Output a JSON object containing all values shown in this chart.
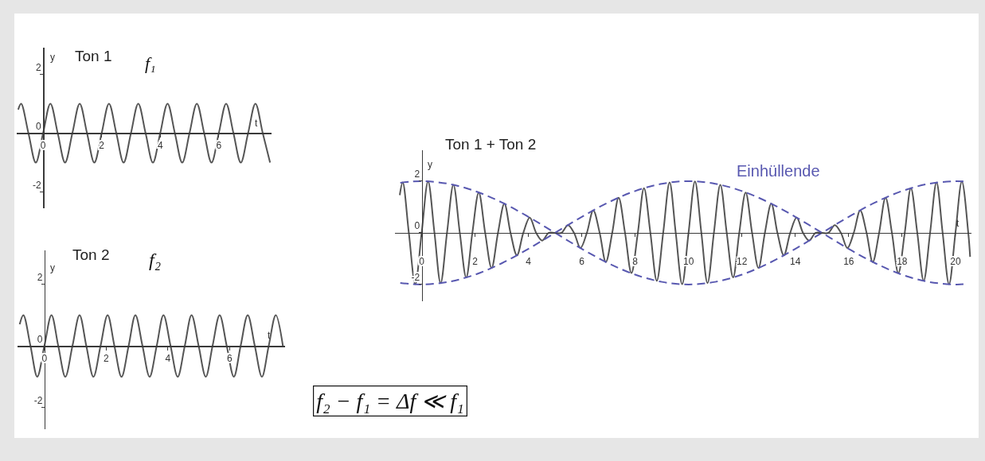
{
  "chart_data": [
    {
      "type": "line",
      "title": "Ton 1",
      "annotations": [
        "f₁"
      ],
      "xlabel": "t",
      "ylabel": "y",
      "x": [
        -0.85,
        -0.75,
        -0.5,
        -0.25,
        0,
        0.25,
        0.5,
        0.75,
        1,
        1.25,
        1.5,
        1.75,
        2,
        2.25,
        2.5,
        2.75,
        3,
        3.25,
        3.5,
        3.75,
        4,
        4.25,
        4.5,
        4.75,
        5,
        5.25,
        5.5,
        5.75,
        6,
        6.25,
        6.5,
        6.75,
        7,
        7.25,
        7.5,
        7.75
      ],
      "series": [
        {
          "color": "#555555",
          "values": [
            0.8,
            1,
            0,
            -1,
            0,
            1,
            0,
            -1,
            0,
            1,
            0,
            -1,
            0,
            1,
            0,
            -1,
            0,
            1,
            0,
            -1,
            0,
            1,
            0,
            -1,
            0,
            1,
            0,
            -1,
            0,
            1,
            0,
            -1,
            0,
            1,
            0,
            -1
          ]
        }
      ],
      "xlim": [
        -0.9,
        7.8
      ],
      "ylim": [
        -2.55,
        2.9
      ],
      "xticks": [
        0,
        2,
        4,
        6
      ],
      "yticks": [
        -2,
        0,
        2
      ]
    },
    {
      "type": "line",
      "title": "Ton 2",
      "annotations": [
        "f₂"
      ],
      "xlabel": "t",
      "ylabel": "y",
      "x": [
        -0.8,
        -0.68,
        -0.45,
        -0.23,
        0,
        0.23,
        0.45,
        0.68,
        0.91,
        1.14,
        1.36,
        1.59,
        1.82,
        2.05,
        2.27,
        2.5,
        2.73,
        2.95,
        3.18,
        3.41,
        3.64,
        3.86,
        4.09,
        4.32,
        4.55,
        4.77,
        5,
        5.23,
        5.45,
        5.68,
        5.91,
        6.14,
        6.36,
        6.59,
        6.82,
        7.05,
        7.27,
        7.5,
        7.73
      ],
      "series": [
        {
          "color": "#555555",
          "values": [
            0.7,
            1,
            0,
            -1,
            0,
            1,
            0,
            -1,
            0,
            1,
            0,
            -1,
            0,
            1,
            0,
            -1,
            0,
            1,
            0,
            -1,
            0,
            1,
            0,
            -1,
            0,
            1,
            0,
            -1,
            0,
            1,
            0,
            -1,
            0,
            1,
            0,
            -1,
            0,
            1,
            0
          ]
        }
      ],
      "xlim": [
        -0.87,
        7.8
      ],
      "ylim": [
        -2.7,
        3.1
      ],
      "xticks": [
        0,
        2,
        4,
        6
      ],
      "yticks": [
        -2,
        0,
        2
      ]
    },
    {
      "type": "line",
      "title": "Ton 1 + Ton 2",
      "annotations": [
        "f₂ − f₁ = Δf ≪ f₁"
      ],
      "xlabel": "t",
      "ylabel": "y",
      "series": [
        {
          "color": "#555555",
          "x": [
            -0.82,
            -0.71,
            -0.48,
            -0.24,
            0,
            0.24,
            0.48,
            0.71,
            0.95,
            1.19,
            1.43,
            1.67,
            1.9,
            2.14,
            2.38,
            2.62,
            2.86,
            3.1,
            3.33,
            3.57,
            3.81,
            4.05,
            4.29,
            4.52,
            4.76,
            5,
            5.24,
            5.48,
            5.71,
            5.95,
            6.19,
            6.43,
            6.67,
            6.9,
            7.14,
            7.38,
            7.62,
            7.86,
            8.1,
            8.33,
            8.57,
            8.81,
            9.05,
            9.29,
            9.52,
            9.76,
            10,
            10.24,
            10.48,
            10.71,
            10.95,
            11.19,
            11.43,
            11.67,
            11.9,
            12.14,
            12.38,
            12.62,
            12.86,
            13.1,
            13.33,
            13.57,
            13.81,
            14.05,
            14.29,
            14.52,
            14.76,
            15,
            15.24,
            15.48,
            15.71,
            15.95,
            16.19,
            16.43,
            16.67,
            16.9,
            17.14,
            17.38,
            17.62,
            17.86,
            18.1,
            18.33,
            18.57,
            18.81,
            19.05,
            19.29,
            19.52,
            19.76,
            20,
            20.24,
            20.48,
            20.55
          ],
          "values": [
            1.46,
            1.95,
            0,
            -1.99,
            0,
            1.99,
            0,
            -1.95,
            0,
            1.86,
            0,
            -1.73,
            0,
            1.56,
            0,
            -1.36,
            0,
            1.13,
            0,
            -0.87,
            0,
            0.59,
            0,
            -0.3,
            0,
            0,
            0,
            0.3,
            0,
            -0.59,
            0,
            0.87,
            0,
            -1.13,
            0,
            1.36,
            0,
            -1.56,
            0,
            1.73,
            0,
            -1.86,
            0,
            1.95,
            0,
            -1.99,
            0,
            1.99,
            0,
            -1.95,
            0,
            1.86,
            0,
            -1.73,
            0,
            1.56,
            0,
            -1.36,
            0,
            1.13,
            0,
            -0.87,
            0,
            0.59,
            0,
            -0.3,
            0,
            0,
            0,
            0.3,
            0,
            -0.59,
            0,
            0.87,
            0,
            -1.13,
            0,
            1.36,
            0,
            -1.56,
            0,
            1.73,
            0,
            -1.86,
            0,
            1.95,
            0,
            -1.99,
            0,
            1.99,
            0,
            -0.93
          ]
        },
        {
          "name": "Einhüllende",
          "color": "#5858b0",
          "line_style": "dashed",
          "x": [
            -0.8,
            0,
            1,
            2,
            3,
            4,
            5,
            6,
            7,
            8,
            9,
            10,
            11,
            12,
            13,
            14,
            15,
            16,
            17,
            18,
            19,
            20,
            20.3
          ],
          "values": [
            1.94,
            2,
            1.9,
            1.62,
            1.18,
            0.62,
            0,
            -0.62,
            -1.18,
            -1.62,
            -1.9,
            -2,
            -1.9,
            -1.62,
            -1.18,
            -0.62,
            0,
            0.62,
            1.18,
            1.62,
            1.9,
            2,
            1.99
          ]
        },
        {
          "color": "#5858b0",
          "line_style": "dashed",
          "x": [
            -0.8,
            0,
            1,
            2,
            3,
            4,
            5,
            6,
            7,
            8,
            9,
            10,
            11,
            12,
            13,
            14,
            15,
            16,
            17,
            18,
            19,
            20,
            20.3
          ],
          "values": [
            -1.94,
            -2,
            -1.9,
            -1.62,
            -1.18,
            -0.62,
            0,
            0.62,
            1.18,
            1.62,
            1.9,
            2,
            1.9,
            1.62,
            1.18,
            0.62,
            0,
            -0.62,
            -1.18,
            -1.62,
            -1.9,
            -2,
            -1.99
          ]
        }
      ],
      "xlim": [
        -1,
        20.6
      ],
      "ylim": [
        -2.65,
        3.2
      ],
      "xticks": [
        0,
        2,
        4,
        6,
        8,
        10,
        12,
        14,
        16,
        18,
        20
      ],
      "yticks": [
        -2,
        0,
        2
      ]
    }
  ]
}
